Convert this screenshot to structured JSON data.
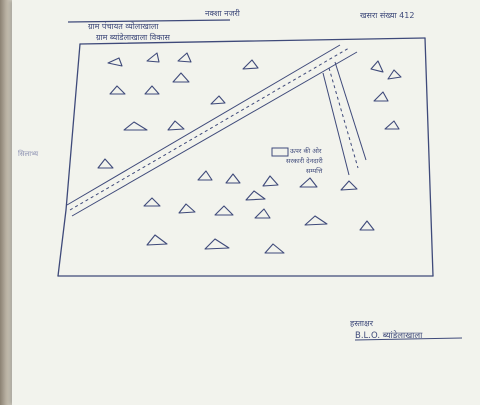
{
  "header": {
    "title": "नक्शा नजरी",
    "right_note": "खसरा संख्या 412",
    "line1": "ग्राम पंचायत व्योलाखाला",
    "line2": "ग्राम ब्यांडेलाखाला विकास"
  },
  "map": {
    "side_label": "सिलाभ्य",
    "box_label_line1": "ऊपर की ओर",
    "box_label_line2": "सरकारी देनदारी",
    "box_label_line3": "सम्पत्ति"
  },
  "signature": {
    "line1": "हस्ताक्षर",
    "line2": "B.L.O. ब्यांडेलाखाला"
  },
  "colors": {
    "ink": "#3f4a7a",
    "paper": "#f2f3ed"
  }
}
